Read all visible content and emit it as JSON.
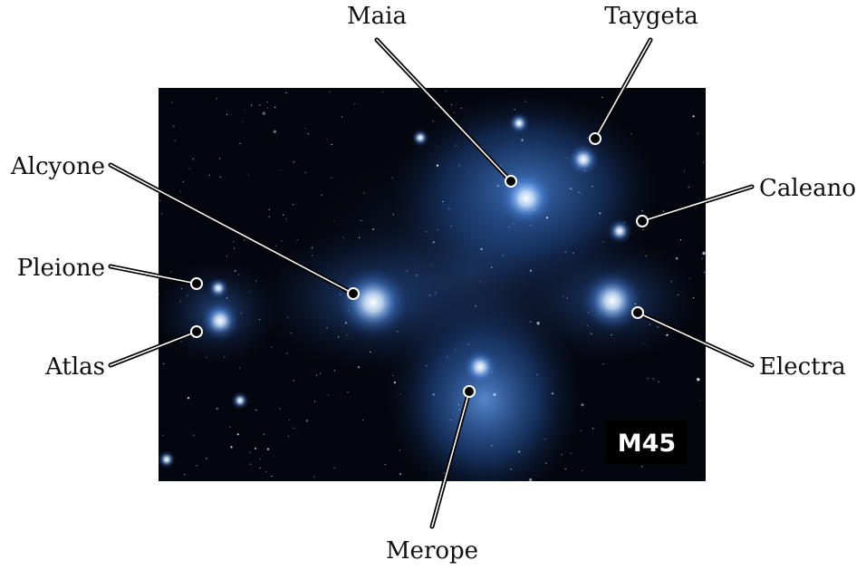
{
  "image": {
    "description_icon": "pleiades-star-cluster-photo",
    "colors": {
      "background": "#04060d",
      "nebula": "#3d7fd6",
      "star": "#e8f4ff",
      "badge_background": "#000000",
      "badge_text": "#ffffff"
    }
  },
  "badge": {
    "label": "M45"
  },
  "stars": [
    {
      "id": "maia",
      "name": "Maia"
    },
    {
      "id": "taygeta",
      "name": "Taygeta"
    },
    {
      "id": "alcyone",
      "name": "Alcyone"
    },
    {
      "id": "caleano",
      "name": "Caleano"
    },
    {
      "id": "pleione",
      "name": "Pleione"
    },
    {
      "id": "atlas",
      "name": "Atlas"
    },
    {
      "id": "electra",
      "name": "Electra"
    },
    {
      "id": "merope",
      "name": "Merope"
    }
  ]
}
